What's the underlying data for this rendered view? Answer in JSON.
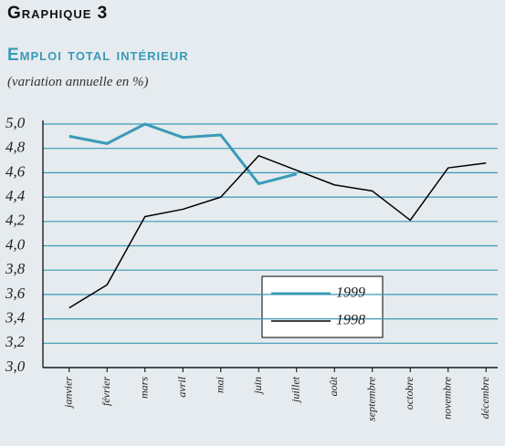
{
  "chart_data": {
    "type": "line",
    "title": "Graphique 3",
    "subtitle": "Emploi total intérieur",
    "note": "(variation annuelle en %)",
    "categories": [
      "janvier",
      "février",
      "mars",
      "avril",
      "mai",
      "juin",
      "juillet",
      "août",
      "septembre",
      "octobre",
      "novembre",
      "décembre"
    ],
    "series": [
      {
        "name": "1999",
        "color": "#3a9ab8",
        "values": [
          4.9,
          4.84,
          5.0,
          4.89,
          4.91,
          4.51,
          4.59,
          null,
          null,
          null,
          null,
          null
        ]
      },
      {
        "name": "1998",
        "color": "#000000",
        "values": [
          3.49,
          3.68,
          4.24,
          4.3,
          4.4,
          4.74,
          4.62,
          4.5,
          4.45,
          4.21,
          4.64,
          4.68
        ]
      }
    ],
    "ylim": [
      3.0,
      5.0
    ],
    "yticks": [
      {
        "value": 3.0,
        "label": "3,0"
      },
      {
        "value": 3.2,
        "label": "3,2"
      },
      {
        "value": 3.4,
        "label": "3,4"
      },
      {
        "value": 3.6,
        "label": "3,6"
      },
      {
        "value": 3.8,
        "label": "3,8"
      },
      {
        "value": 4.0,
        "label": "4,0"
      },
      {
        "value": 4.2,
        "label": "4,2"
      },
      {
        "value": 4.4,
        "label": "4,4"
      },
      {
        "value": 4.6,
        "label": "4,6"
      },
      {
        "value": 4.8,
        "label": "4,8"
      },
      {
        "value": 5.0,
        "label": "5,0"
      }
    ],
    "grid": true,
    "grid_color": "#3a9ab8"
  }
}
